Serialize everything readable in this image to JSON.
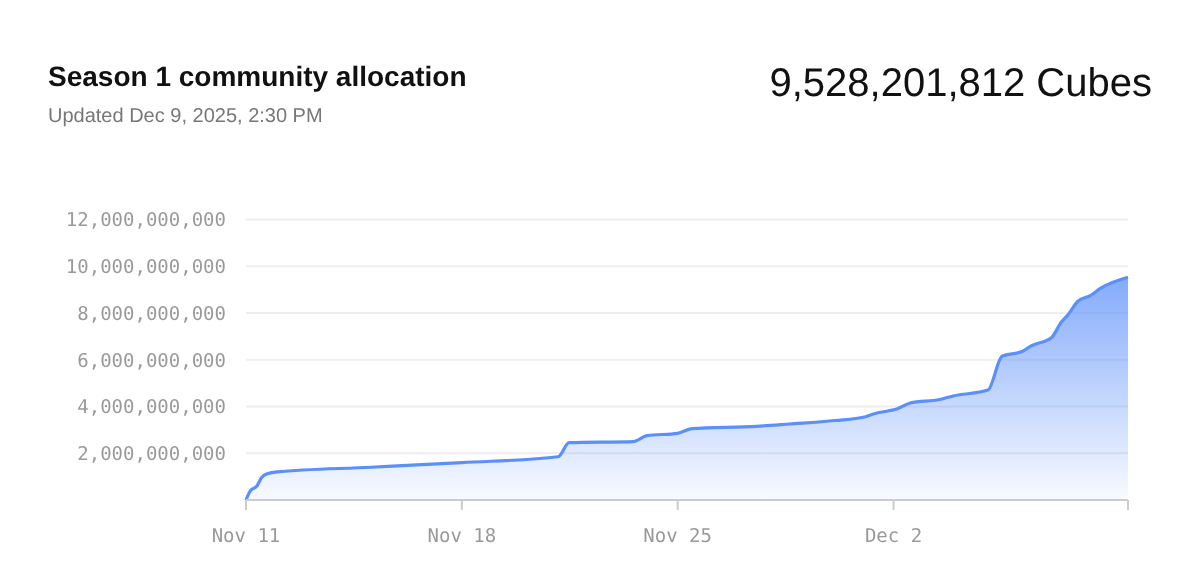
{
  "chart_data": {
    "type": "area",
    "title": "Season 1 community allocation",
    "subtitle": "Updated Dec 9, 2025, 2:30 PM",
    "annotations": [
      "9,528,201,812 Cubes"
    ],
    "x": [
      "2025-11-11T00:00",
      "2025-11-11T03:30",
      "2025-11-11T08:30",
      "2025-11-11T12:00",
      "2025-11-11T15:30",
      "2025-11-12T00:00",
      "2025-11-15T01:30",
      "2025-11-18T00:00",
      "2025-11-21T03:00",
      "2025-11-21T11:30",
      "2025-11-23T13:30",
      "2025-11-24T00:00",
      "2025-11-25T00:00",
      "2025-11-25T11:00",
      "2025-11-27T13:30",
      "2025-11-28T15:00",
      "2025-11-30T02:30",
      "2025-12-01T01:30",
      "2025-12-01T09:30",
      "2025-12-02T03:00",
      "2025-12-02T13:00",
      "2025-12-03T12:00",
      "2025-12-03T22:30",
      "2025-12-05T01:30",
      "2025-12-05T12:30",
      "2025-12-06T04:00",
      "2025-12-06T11:30",
      "2025-12-07T03:00",
      "2025-12-07T10:30",
      "2025-12-07T15:30",
      "2025-12-07T23:30",
      "2025-12-08T09:30",
      "2025-12-08T17:00",
      "2025-12-09T14:30"
    ],
    "series": [
      {
        "color": "#5b8ff9",
        "values": [
          0,
          400000000,
          600000000,
          950000000,
          1100000000,
          1200000000,
          1400000000,
          1600000000,
          1850000000,
          2450000000,
          2500000000,
          2750000000,
          2850000000,
          3050000000,
          3150000000,
          3250000000,
          3400000000,
          3550000000,
          3700000000,
          3900000000,
          4150000000,
          4300000000,
          4450000000,
          4700000000,
          6150000000,
          6350000000,
          6600000000,
          6950000000,
          7600000000,
          7900000000,
          8500000000,
          8750000000,
          9050000000,
          9528201812
        ]
      }
    ],
    "xlim": [
      "2025-11-11T00:00",
      "2025-12-09T14:30"
    ],
    "xticks": [
      {
        "value": "2025-11-11",
        "label": "Nov 11"
      },
      {
        "value": "2025-11-18",
        "label": "Nov 18"
      },
      {
        "value": "2025-11-25",
        "label": "Nov 25"
      },
      {
        "value": "2025-12-02",
        "label": "Dec 2"
      },
      {
        "value": "2025-12-09T14:30",
        "label": null
      }
    ],
    "ylim": [
      0,
      12000000000
    ],
    "yticks": [
      {
        "value": 2000000000,
        "label": "2,000,000,000"
      },
      {
        "value": 4000000000,
        "label": "4,000,000,000"
      },
      {
        "value": 6000000000,
        "label": "6,000,000,000"
      },
      {
        "value": 8000000000,
        "label": "8,000,000,000"
      },
      {
        "value": 10000000000,
        "label": "10,000,000,000"
      },
      {
        "value": 12000000000,
        "label": "12,000,000,000"
      }
    ],
    "grid": "y"
  }
}
